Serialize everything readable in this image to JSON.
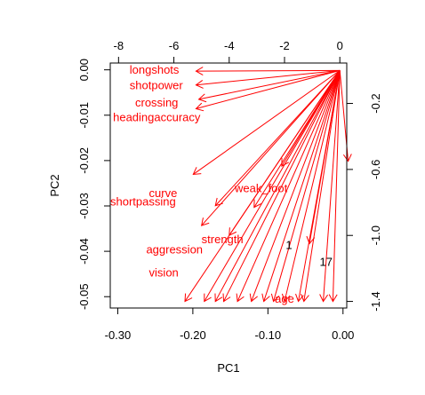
{
  "chart_data": {
    "type": "biplot",
    "xlabel": "PC1",
    "ylabel": "PC2",
    "xlim": [
      -0.31,
      0.005
    ],
    "ylim": [
      -0.0525,
      0.0015
    ],
    "x_ticks": [
      "-0.30",
      "-0.20",
      "-0.10",
      "0.00"
    ],
    "x_tick_values": [
      -0.3,
      -0.2,
      -0.1,
      0.0
    ],
    "y_ticks": [
      "0.00",
      "-0.01",
      "-0.02",
      "-0.03",
      "-0.04",
      "-0.05"
    ],
    "y_tick_values": [
      0.0,
      -0.01,
      -0.02,
      -0.03,
      -0.04,
      -0.05
    ],
    "top_axis": {
      "ticks": [
        "-8",
        "-6",
        "-4",
        "-2",
        "0"
      ],
      "tick_values": [
        -8,
        -6,
        -4,
        -2,
        0
      ],
      "lim": [
        -8.3,
        0.25
      ]
    },
    "right_axis": {
      "ticks": [
        "-0.2",
        "-0.6",
        "-1.0",
        "-1.4"
      ],
      "tick_values": [
        -0.2,
        -0.6,
        -1.0,
        -1.4
      ],
      "lim": [
        -1.44,
        0.045
      ]
    },
    "variables": [
      {
        "name": "longshots",
        "label": "longshots",
        "x": -5.2,
        "y": -0.004,
        "label_x": -7.6,
        "label_y": 0.0
      },
      {
        "name": "shotpower",
        "label": "shotpower",
        "x": -5.2,
        "y": -0.088,
        "label_x": -7.6,
        "label_y": -0.094
      },
      {
        "name": "crossing",
        "label": "crossing",
        "x": -5.1,
        "y": -0.175,
        "label_x": -7.4,
        "label_y": -0.2
      },
      {
        "name": "headingaccuracy",
        "label": "headingaccuracy",
        "x": -5.2,
        "y": -0.232,
        "label_x": -8.2,
        "label_y": -0.29
      },
      {
        "name": "dribbling",
        "label": "",
        "x": -5.3,
        "y": -0.63,
        "label_x": null,
        "label_y": null
      },
      {
        "name": "weak_foot",
        "label": "weak_foot",
        "x": -2.1,
        "y": -0.58,
        "label_x": -3.8,
        "label_y": -0.72
      },
      {
        "name": "curve",
        "label": "curve",
        "x": -4.5,
        "y": -0.82,
        "label_x": -6.9,
        "label_y": -0.75
      },
      {
        "name": "shortpassing",
        "label": "shortpassing",
        "x": -5.0,
        "y": -0.94,
        "label_x": -8.3,
        "label_y": -0.8
      },
      {
        "name": "strength",
        "label": "strength",
        "x": -3.1,
        "y": -0.83,
        "label_x": -5.0,
        "label_y": -1.03
      },
      {
        "name": "aggression",
        "label": "aggression",
        "x": -4.0,
        "y": -1.0,
        "label_x": -7.0,
        "label_y": -1.09
      },
      {
        "name": "vision",
        "label": "vision",
        "x": -4.5,
        "y": -1.4,
        "label_x": -6.9,
        "label_y": -1.23
      },
      {
        "name": "age",
        "label": "age",
        "x": -1.5,
        "y": -1.4,
        "label_x": -2.35,
        "label_y": -1.39
      },
      {
        "name": "extra1",
        "label": "",
        "x": -5.6,
        "y": -1.4,
        "label_x": null,
        "label_y": null
      },
      {
        "name": "extra2",
        "label": "",
        "x": -4.9,
        "y": -1.4,
        "label_x": null,
        "label_y": null
      },
      {
        "name": "extra3",
        "label": "",
        "x": -4.2,
        "y": -1.4,
        "label_x": null,
        "label_y": null
      },
      {
        "name": "extra4",
        "label": "",
        "x": -3.7,
        "y": -1.4,
        "label_x": null,
        "label_y": null
      },
      {
        "name": "extra5",
        "label": "",
        "x": -3.2,
        "y": -1.4,
        "label_x": null,
        "label_y": null
      },
      {
        "name": "extra6",
        "label": "",
        "x": -2.75,
        "y": -1.4,
        "label_x": null,
        "label_y": null
      },
      {
        "name": "extra7",
        "label": "",
        "x": -2.4,
        "y": -1.4,
        "label_x": null,
        "label_y": null
      },
      {
        "name": "extra8",
        "label": "",
        "x": -2.0,
        "y": -1.4,
        "label_x": null,
        "label_y": null
      },
      {
        "name": "extra9",
        "label": "",
        "x": -1.3,
        "y": -1.4,
        "label_x": null,
        "label_y": null
      },
      {
        "name": "extra10",
        "label": "",
        "x": -1.1,
        "y": -1.05,
        "label_x": null,
        "label_y": null
      },
      {
        "name": "extra11",
        "label": "",
        "x": -0.6,
        "y": -1.4,
        "label_x": null,
        "label_y": null
      },
      {
        "name": "extra12",
        "label": "",
        "x": -0.25,
        "y": -1.4,
        "label_x": null,
        "label_y": null
      },
      {
        "name": "extra13",
        "label": "",
        "x": 0.3,
        "y": -0.55,
        "label_x": null,
        "label_y": null
      }
    ],
    "observations": [
      {
        "label": "1",
        "x": -0.072,
        "y": -0.0388
      },
      {
        "label": "17",
        "x": -0.0225,
        "y": -0.0425
      }
    ],
    "colors": {
      "arrows": "#ff0000",
      "points": "#000000",
      "axes": "#000000"
    }
  }
}
